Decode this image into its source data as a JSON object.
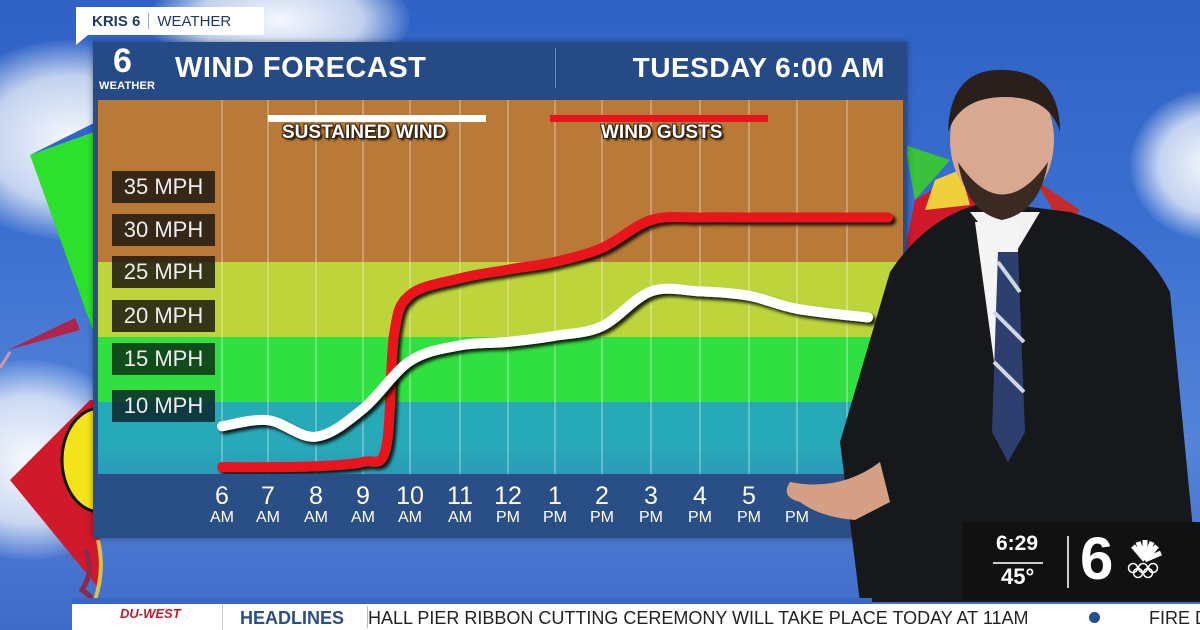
{
  "top_tag": {
    "station": "KRIS 6",
    "section": "WEATHER"
  },
  "panel": {
    "logo_number": "6",
    "logo_label": "WEATHER",
    "title": "WIND FORECAST",
    "datetime": "TUESDAY 6:00 AM"
  },
  "legend": [
    {
      "label": "SUSTAINED WIND",
      "color": "#ffffff"
    },
    {
      "label": "WIND GUSTS",
      "color": "#e8141c"
    }
  ],
  "y_labels": [
    "35 MPH",
    "30 MPH",
    "25 MPH",
    "20 MPH",
    "15 MPH",
    "10 MPH"
  ],
  "x_labels": [
    {
      "hour": "6",
      "ampm": "AM"
    },
    {
      "hour": "7",
      "ampm": "AM"
    },
    {
      "hour": "8",
      "ampm": "AM"
    },
    {
      "hour": "9",
      "ampm": "AM"
    },
    {
      "hour": "10",
      "ampm": "AM"
    },
    {
      "hour": "11",
      "ampm": "AM"
    },
    {
      "hour": "12",
      "ampm": "PM"
    },
    {
      "hour": "1",
      "ampm": "PM"
    },
    {
      "hour": "2",
      "ampm": "PM"
    },
    {
      "hour": "3",
      "ampm": "PM"
    },
    {
      "hour": "4",
      "ampm": "PM"
    },
    {
      "hour": "5",
      "ampm": "PM"
    },
    {
      "hour": "",
      "ampm": "PM"
    }
  ],
  "bands": [
    {
      "name": "brown",
      "color": "#b87a36",
      "from_mph": 27,
      "to_mph": 45
    },
    {
      "name": "yellow-green",
      "color": "#bdd43a",
      "from_mph": 18.5,
      "to_mph": 27
    },
    {
      "name": "green",
      "color": "#30e040",
      "from_mph": 11,
      "to_mph": 18.5
    },
    {
      "name": "teal",
      "color": "#27aab8",
      "from_mph": 0,
      "to_mph": 11
    }
  ],
  "chart_data": {
    "type": "line",
    "title": "WIND FORECAST",
    "subtitle": "TUESDAY 6:00 AM",
    "xlabel": "",
    "ylabel": "MPH",
    "categories": [
      "6 AM",
      "7 AM",
      "8 AM",
      "9 AM",
      "10 AM",
      "11 AM",
      "12 PM",
      "1 PM",
      "2 PM",
      "3 PM",
      "4 PM",
      "5 PM",
      "6 PM"
    ],
    "series": [
      {
        "name": "SUSTAINED WIND",
        "color": "#ffffff",
        "values": [
          7.5,
          8.2,
          6.3,
          9.5,
          15,
          16.8,
          17.2,
          17.9,
          19,
          23,
          23,
          22.5,
          21
        ]
      },
      {
        "name": "WIND GUSTS",
        "color": "#e8141c",
        "values": [
          2.8,
          2.8,
          2.9,
          3.4,
          22.6,
          24.5,
          25.5,
          26.4,
          28,
          31.2,
          31.5,
          31.5,
          31.5
        ]
      }
    ],
    "y_ticks": [
      10,
      15,
      20,
      25,
      30,
      35
    ],
    "ylim": [
      0,
      45
    ],
    "grid": "vertical",
    "legend_position": "top"
  },
  "bug": {
    "time": "6:29",
    "temp": "45°",
    "channel": "6"
  },
  "ticker": {
    "sponsor": "DU-WEST",
    "heading": "HEADLINES",
    "text": "HALL PIER RIBBON CUTTING CEREMONY WILL TAKE PLACE TODAY AT 11AM",
    "next": "FIRE D"
  }
}
